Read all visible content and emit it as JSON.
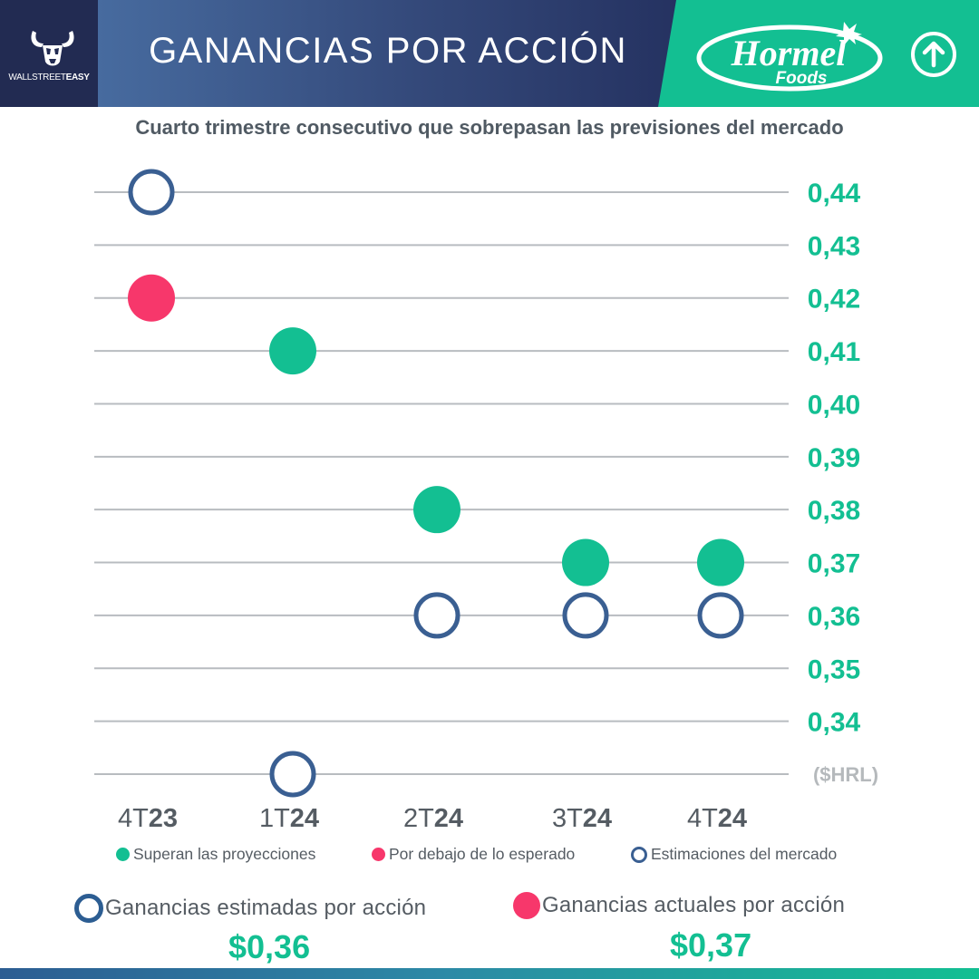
{
  "header": {
    "brand": "WALLSTREET",
    "brand_bold": "EASY",
    "title": "GANANCIAS POR ACCIÓN",
    "company_logo": "Hormel",
    "company_logo_sub": "Foods",
    "trend_icon": "up-arrow-icon"
  },
  "chart_data": {
    "type": "scatter",
    "title": "",
    "subtitle": "Cuarto trimestre consecutivo que sobrepasan las previsiones del mercado",
    "unit_label": "($HRL)",
    "categories": [
      {
        "pre": "4T",
        "bold": "23"
      },
      {
        "pre": "1T",
        "bold": "24"
      },
      {
        "pre": "2T",
        "bold": "24"
      },
      {
        "pre": "3T",
        "bold": "24"
      },
      {
        "pre": "4T",
        "bold": "24"
      }
    ],
    "y_ticks": [
      "0,44",
      "0,43",
      "0,42",
      "0,41",
      "0,40",
      "0,39",
      "0,38",
      "0,37",
      "0,36",
      "0,35",
      "0,34"
    ],
    "ylim": [
      0.33,
      0.44
    ],
    "grid": true,
    "axis_side": "right",
    "series": [
      {
        "name": "Estimaciones del mercado",
        "marker": "ring",
        "color": "#3a5f92",
        "values": [
          0.44,
          0.33,
          0.36,
          0.36,
          0.36
        ]
      },
      {
        "name": "Ganancias actuales",
        "marker": "dot",
        "values": [
          0.42,
          0.41,
          0.38,
          0.37,
          0.37
        ],
        "outcome": [
          "below",
          "above",
          "above",
          "above",
          "above"
        ]
      }
    ],
    "legend": [
      {
        "label": "Superan las proyecciones",
        "type": "dot",
        "color": "#13bf92"
      },
      {
        "label": "Por debajo de lo esperado",
        "type": "dot",
        "color": "#f7376b"
      },
      {
        "label": "Estimaciones del mercado",
        "type": "ring",
        "color": "#3a5f92"
      }
    ],
    "legend_placement": "bottom",
    "colors": {
      "above": "#13bf92",
      "below": "#f7376b",
      "estimate": "#3a5f92",
      "grid": "#b8bcc0",
      "ticks": "#13bf92"
    }
  },
  "summary": {
    "estimated_label": "Ganancias estimadas por acción",
    "estimated_value": "$0,36",
    "actual_label": "Ganancias actuales por acción",
    "actual_value": "$0,37"
  }
}
